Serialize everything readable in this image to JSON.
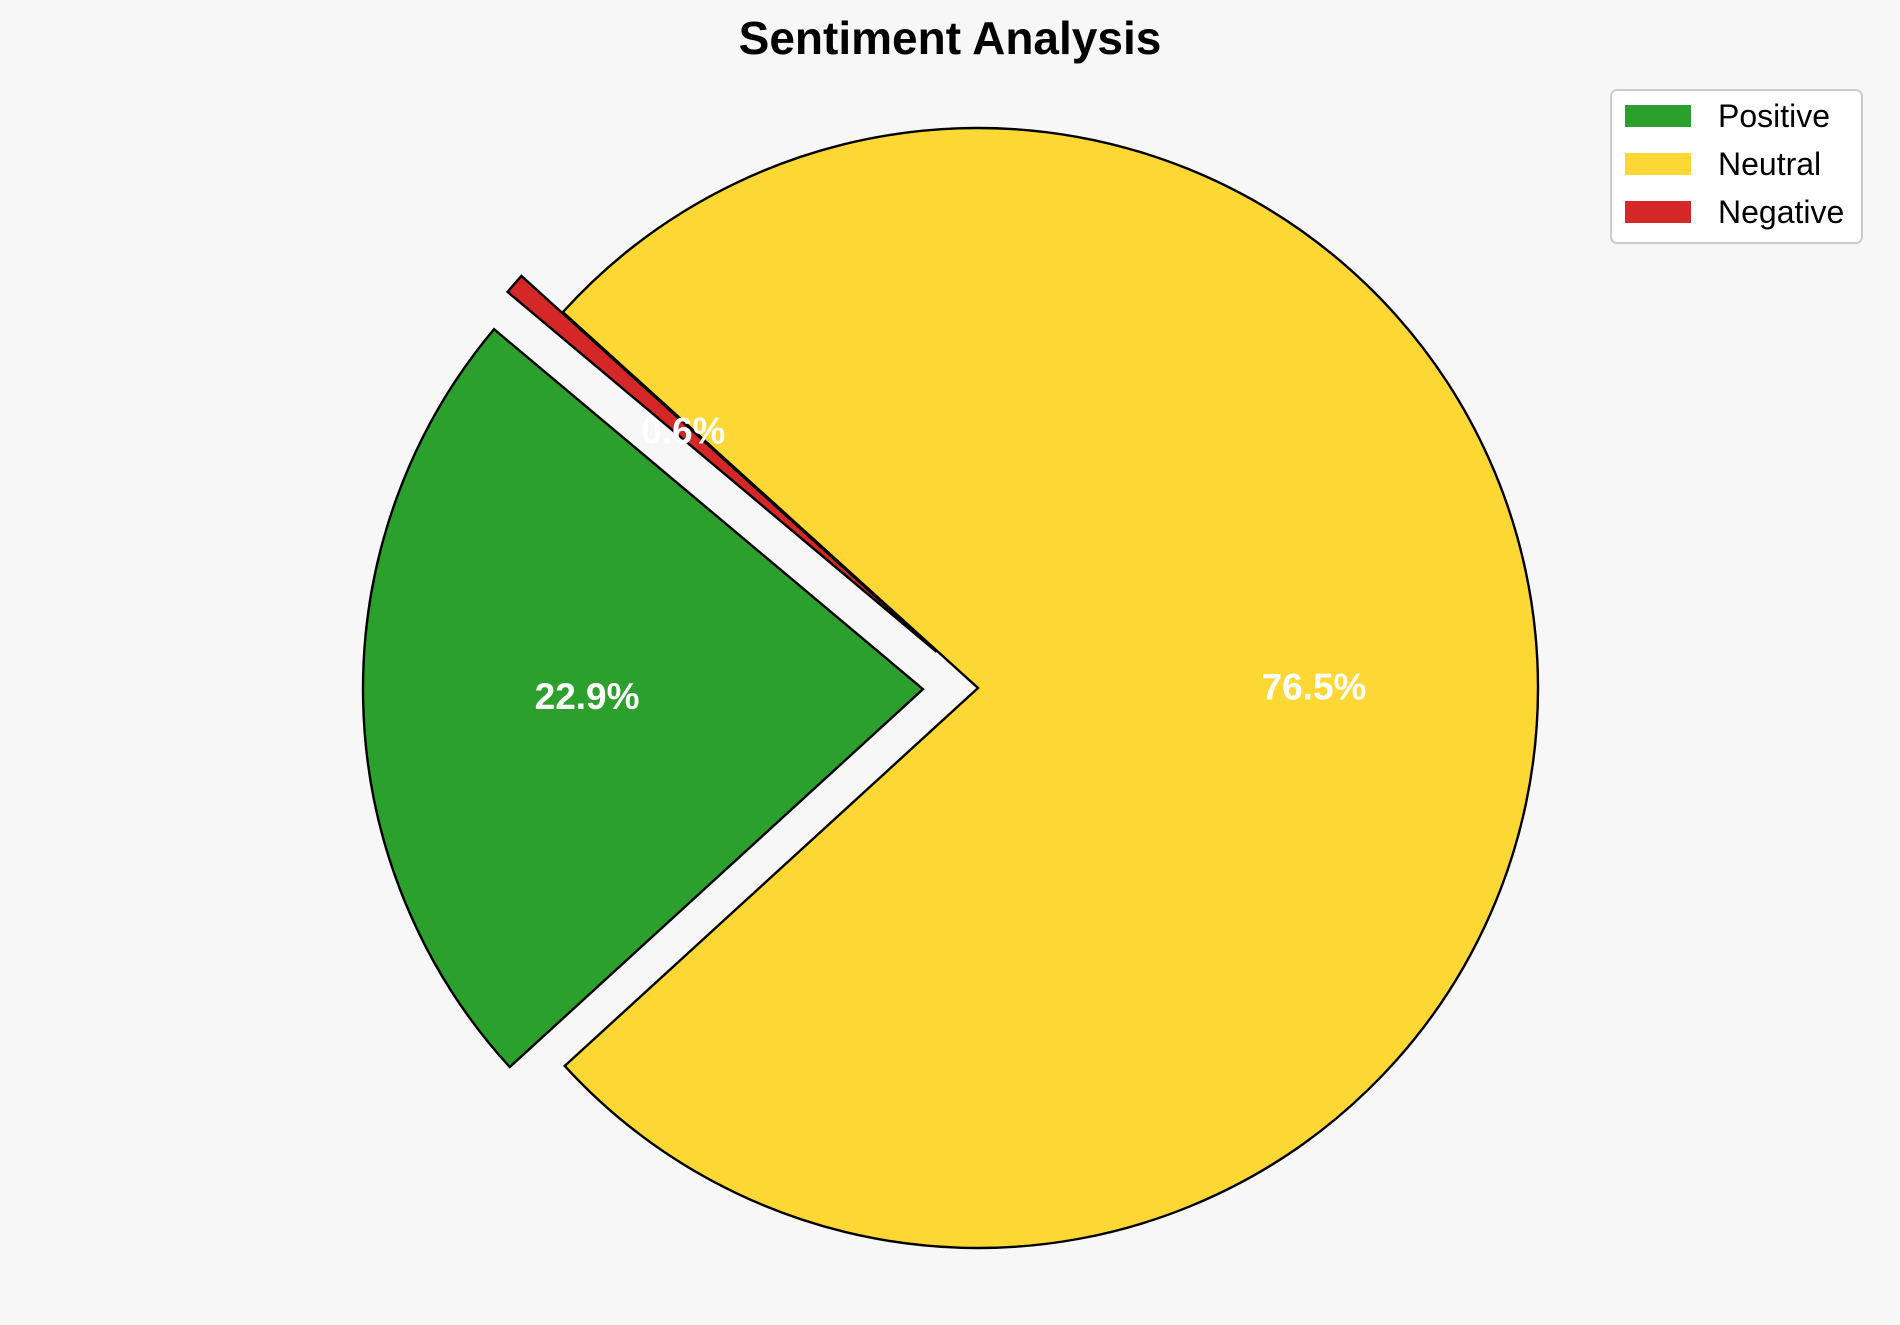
{
  "chart_data": {
    "type": "pie",
    "title": "Sentiment Analysis",
    "categories": [
      "Positive",
      "Neutral",
      "Negative"
    ],
    "values": [
      22.9,
      76.5,
      0.6
    ],
    "labels": [
      "22.9%",
      "76.5%",
      "0.6%"
    ],
    "colors": [
      "#2ca02c",
      "#fdd835",
      "#d62728"
    ],
    "exploded": [
      true,
      false,
      true
    ],
    "start_angle_deg": 140,
    "legend_position": "top-right",
    "background": "#f7f7f7"
  }
}
